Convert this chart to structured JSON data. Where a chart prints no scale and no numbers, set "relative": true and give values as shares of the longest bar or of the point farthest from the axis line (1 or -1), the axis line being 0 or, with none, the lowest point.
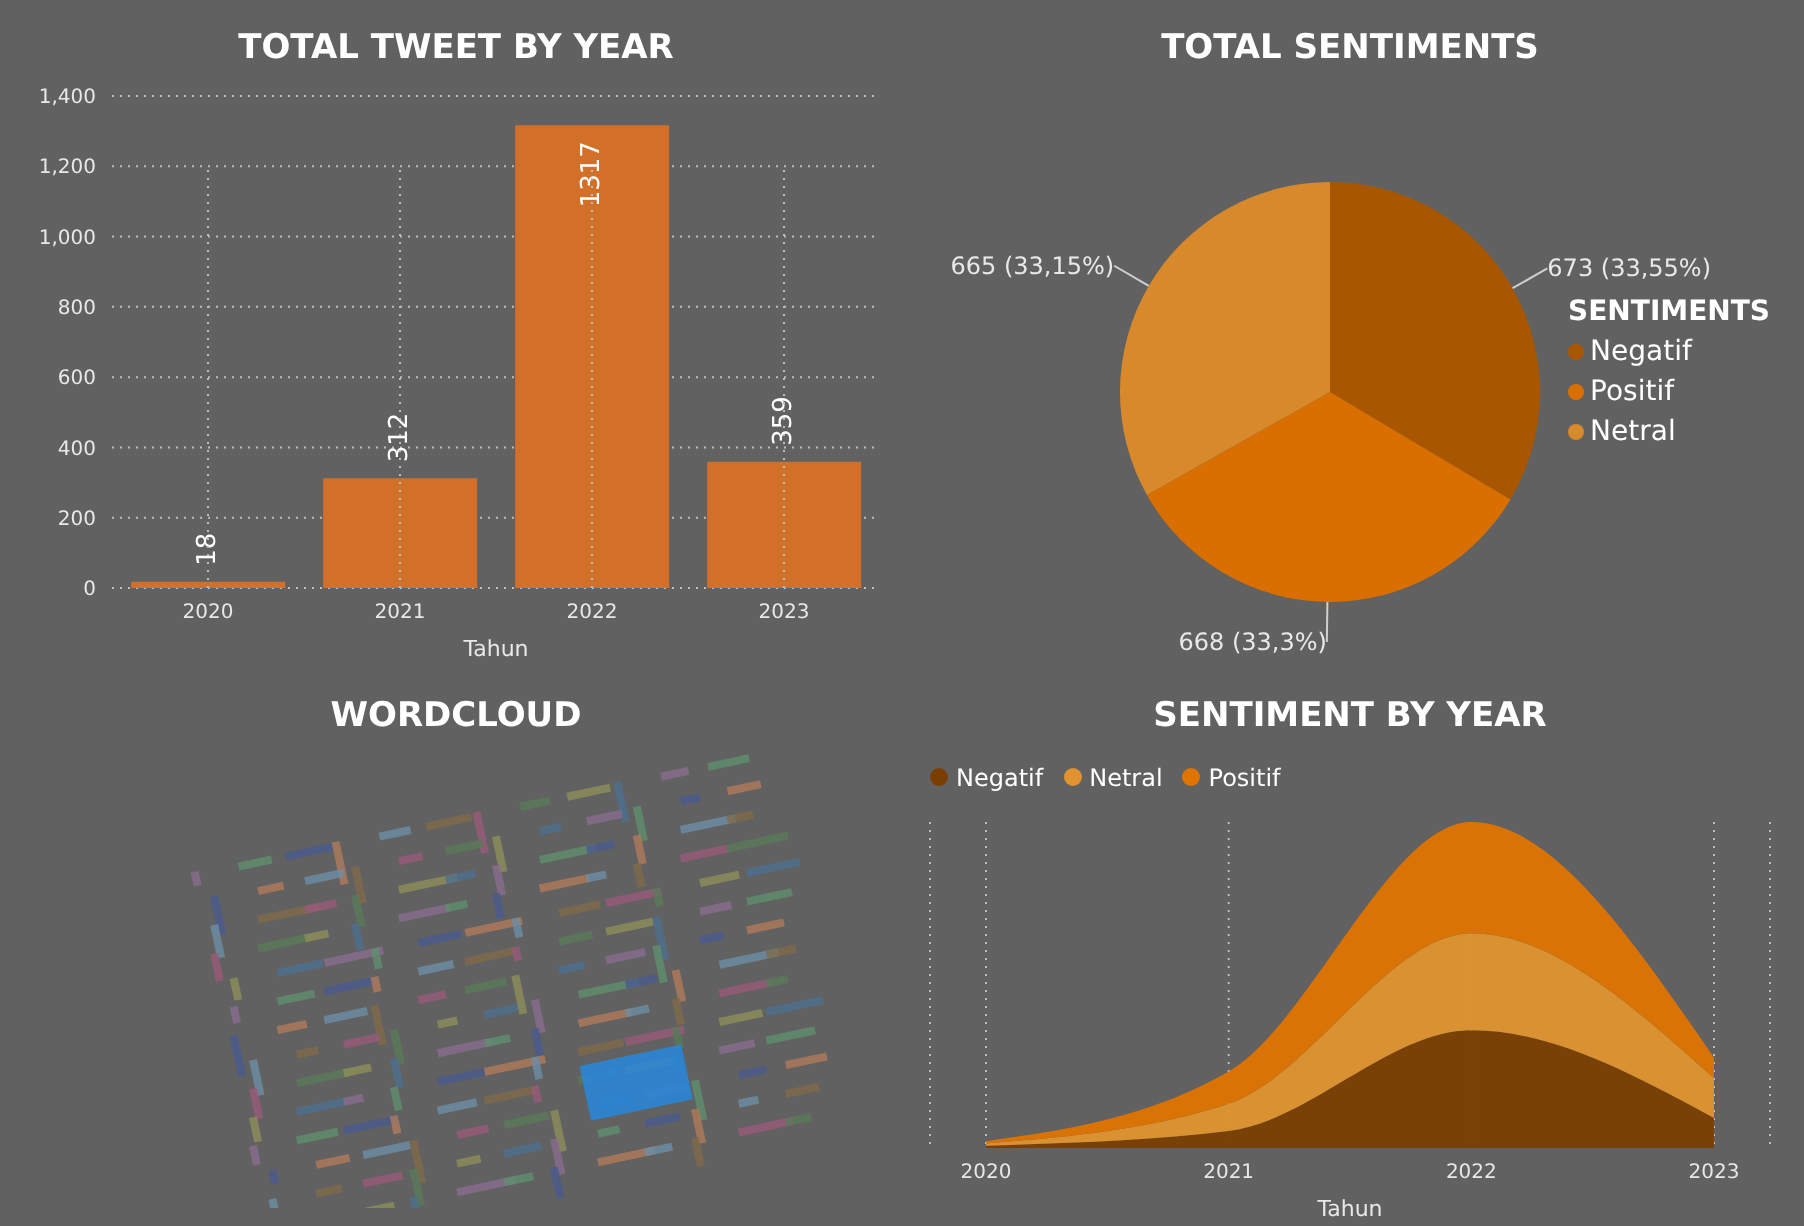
{
  "chart_data": [
    {
      "type": "bar",
      "title": "TOTAL TWEET BY YEAR",
      "xlabel": "Tahun",
      "categories": [
        "2020",
        "2021",
        "2022",
        "2023"
      ],
      "values": [
        18,
        312,
        1317,
        359
      ],
      "color": "#d2702a",
      "ylim": [
        0,
        1400
      ],
      "yticks": [
        0,
        200,
        400,
        600,
        800,
        {
          "value": 1000,
          "label": "1,000"
        },
        {
          "value": 1200,
          "label": "1,200"
        },
        {
          "value": 1400,
          "label": "1,400"
        }
      ],
      "grid": true,
      "data_labels": true
    },
    {
      "type": "pie",
      "title": "TOTAL SENTIMENTS",
      "legend_title": "SENTIMENTS",
      "legend": "right",
      "categories": [
        "Negatif",
        "Positif",
        "Netral"
      ],
      "values": [
        673,
        668,
        665
      ],
      "colors": [
        "#a85700",
        "#d96f00",
        "#d8892c"
      ],
      "value_labels": [
        "673 (33,55%)",
        "668 (33,3%)",
        "665 (33,15%)"
      ]
    },
    {
      "type": "other",
      "title": "WORDCLOUD"
    },
    {
      "type": "area",
      "title": "SENTIMENT BY YEAR",
      "xlabel": "Tahun",
      "stacked": true,
      "relative": true,
      "grid": "x",
      "legend": "top left",
      "categories": [
        "2020",
        "2021",
        "2022",
        "2023"
      ],
      "series": [
        {
          "name": "Negatif",
          "color": "#7a3f00",
          "values": [
            0.007,
            0.052,
            0.361,
            0.092
          ]
        },
        {
          "name": "Netral",
          "color": "#e0932e",
          "values": [
            0.007,
            0.084,
            0.298,
            0.122
          ]
        },
        {
          "name": "Positif",
          "color": "#e07400",
          "values": [
            0.007,
            0.099,
            0.341,
            0.063
          ]
        }
      ]
    }
  ]
}
